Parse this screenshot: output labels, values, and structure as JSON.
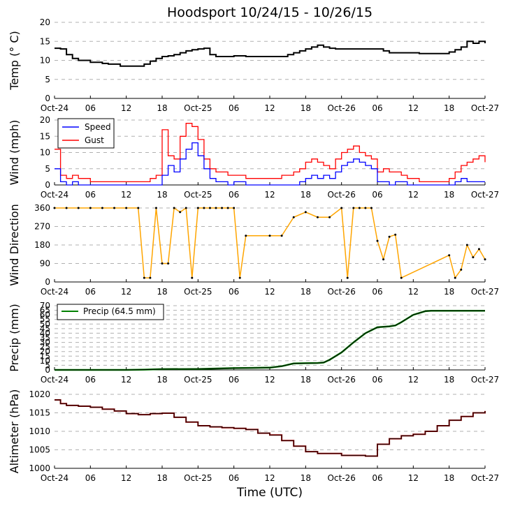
{
  "title": "Hoodsport 10/24/15 - 10/26/15",
  "xlabel": "Time (UTC)",
  "colors": {
    "temp": "#000000",
    "speed": "#0000ff",
    "gust": "#ff0000",
    "direction_line": "#ffa500",
    "direction_dot": "#000000",
    "precip_line": "#008000",
    "precip_dot": "#000000",
    "alt_line": "#8b0000",
    "alt_dot": "#000000",
    "grid": "#b0b0b0"
  },
  "x_ticks": {
    "hours": [
      0,
      6,
      12,
      18,
      24,
      30,
      36,
      42,
      48,
      54,
      60,
      66,
      72
    ],
    "labels": [
      "Oct-24",
      "06",
      "12",
      "18",
      "Oct-25",
      "06",
      "12",
      "18",
      "Oct-26",
      "06",
      "12",
      "18",
      "Oct-27"
    ]
  },
  "chart_data": [
    {
      "type": "line",
      "id": "temp",
      "ylabel": "Temp ($^\\circ$C)",
      "ylabel_display": "Temp (° C)",
      "ylim": [
        0,
        20
      ],
      "yticks": [
        0,
        5,
        10,
        15,
        20
      ],
      "x_hours": [
        0,
        1,
        2,
        3,
        4,
        5,
        6,
        7,
        8,
        9,
        10,
        11,
        12,
        13,
        14,
        15,
        16,
        17,
        18,
        19,
        20,
        21,
        22,
        23,
        24,
        25,
        26,
        27,
        28,
        29,
        30,
        31,
        32,
        33,
        34,
        35,
        36,
        37,
        38,
        39,
        40,
        41,
        42,
        43,
        44,
        45,
        46,
        47,
        48,
        49,
        50,
        51,
        52,
        53,
        54,
        55,
        56,
        57,
        58,
        59,
        60,
        61,
        62,
        63,
        64,
        65,
        66,
        67,
        68,
        69,
        70,
        71,
        72
      ],
      "series": [
        {
          "name": "Temp",
          "values": [
            13.2,
            13.0,
            11.5,
            10.5,
            10.0,
            10.0,
            9.5,
            9.5,
            9.2,
            9.0,
            9.0,
            8.5,
            8.5,
            8.5,
            8.5,
            9.0,
            9.8,
            10.5,
            11.0,
            11.2,
            11.5,
            12.0,
            12.5,
            12.8,
            13.0,
            13.2,
            11.5,
            11.0,
            11.0,
            11.0,
            11.2,
            11.2,
            11.0,
            11.0,
            11.0,
            11.0,
            11.0,
            11.0,
            11.0,
            11.5,
            12.0,
            12.5,
            13.0,
            13.5,
            14.0,
            13.5,
            13.2,
            13.0,
            13.0,
            13.0,
            13.0,
            13.0,
            13.0,
            13.0,
            13.0,
            12.5,
            12.0,
            12.0,
            12.0,
            12.0,
            12.0,
            11.8,
            11.8,
            11.8,
            11.8,
            11.8,
            12.2,
            12.8,
            13.5,
            15.0,
            14.5,
            15.0,
            14.5
          ]
        }
      ]
    },
    {
      "type": "line",
      "id": "wind",
      "ylabel": "Wind (mph)",
      "ylim": [
        0,
        20
      ],
      "yticks": [
        0,
        5,
        10,
        15,
        20
      ],
      "legend": [
        "Speed",
        "Gust"
      ],
      "x_hours": [
        0,
        1,
        2,
        3,
        4,
        5,
        6,
        7,
        8,
        9,
        10,
        11,
        12,
        13,
        14,
        15,
        16,
        17,
        18,
        19,
        20,
        21,
        22,
        23,
        24,
        25,
        26,
        27,
        28,
        29,
        30,
        31,
        32,
        33,
        34,
        35,
        36,
        37,
        38,
        39,
        40,
        41,
        42,
        43,
        44,
        45,
        46,
        47,
        48,
        49,
        50,
        51,
        52,
        53,
        54,
        55,
        56,
        57,
        58,
        59,
        60,
        61,
        62,
        63,
        64,
        65,
        66,
        67,
        68,
        69,
        70,
        71,
        72
      ],
      "series": [
        {
          "name": "Speed",
          "values": [
            5,
            1,
            0,
            1,
            0,
            0,
            0,
            0,
            0,
            0,
            0,
            0,
            0,
            0,
            0,
            0,
            0,
            0,
            3,
            6,
            4,
            8,
            11,
            13,
            9,
            5,
            2,
            1,
            1,
            0,
            1,
            1,
            0,
            0,
            0,
            0,
            0,
            0,
            0,
            0,
            0,
            1,
            2,
            3,
            2,
            3,
            2,
            4,
            6,
            7,
            8,
            7,
            6,
            5,
            1,
            1,
            0,
            1,
            1,
            0,
            0,
            0,
            0,
            0,
            0,
            0,
            0,
            1,
            2,
            1,
            1,
            1,
            1
          ]
        },
        {
          "name": "Gust",
          "values": [
            11,
            3,
            2,
            3,
            2,
            2,
            1,
            1,
            1,
            1,
            1,
            1,
            1,
            1,
            1,
            1,
            2,
            3,
            17,
            9,
            8,
            15,
            19,
            18,
            14,
            8,
            5,
            4,
            4,
            3,
            3,
            3,
            2,
            2,
            2,
            2,
            2,
            2,
            3,
            3,
            4,
            5,
            7,
            8,
            7,
            6,
            5,
            8,
            10,
            11,
            12,
            10,
            9,
            8,
            4,
            5,
            4,
            4,
            3,
            2,
            2,
            1,
            1,
            1,
            1,
            1,
            2,
            4,
            6,
            7,
            8,
            9,
            7
          ]
        }
      ]
    },
    {
      "type": "line",
      "id": "direction",
      "ylabel": "Wind Direction",
      "ylim": [
        0,
        360
      ],
      "yticks": [
        0,
        90,
        180,
        270,
        360
      ],
      "x_hours": [
        0,
        2,
        4,
        6,
        8,
        10,
        12,
        14,
        15,
        16,
        17,
        18,
        19,
        20,
        21,
        22,
        23,
        24,
        25,
        26,
        27,
        28,
        29,
        30,
        31,
        32,
        36,
        38,
        40,
        42,
        44,
        46,
        48,
        49,
        50,
        51,
        52,
        53,
        54,
        55,
        56,
        57,
        58,
        66,
        67,
        68,
        69,
        70,
        71,
        72
      ],
      "series": [
        {
          "name": "Direction",
          "values": [
            360,
            360,
            360,
            360,
            360,
            360,
            360,
            360,
            20,
            20,
            360,
            90,
            90,
            360,
            340,
            360,
            20,
            360,
            360,
            360,
            360,
            360,
            360,
            360,
            20,
            225,
            225,
            225,
            315,
            340,
            315,
            315,
            360,
            20,
            360,
            360,
            360,
            360,
            200,
            110,
            220,
            230,
            20,
            130,
            20,
            60,
            180,
            120,
            160,
            110
          ]
        }
      ]
    },
    {
      "type": "area",
      "id": "precip",
      "ylabel": "Precip (mm)",
      "ylim": [
        0,
        70
      ],
      "yticks": [
        0,
        5,
        10,
        15,
        20,
        25,
        30,
        35,
        40,
        45,
        50,
        55,
        60,
        65,
        70
      ],
      "legend": [
        "Precip (64.5 mm)"
      ],
      "x_hours": [
        0,
        6,
        12,
        15,
        18,
        24,
        30,
        33,
        36,
        38,
        40,
        42,
        44,
        45,
        46,
        48,
        50,
        52,
        54,
        56,
        57,
        58,
        60,
        62,
        63,
        66,
        72
      ],
      "series": [
        {
          "name": "Precip (64.5 mm)",
          "values": [
            0,
            0,
            0,
            0.3,
            0.8,
            1.0,
            2.0,
            2.2,
            2.5,
            4.0,
            7.0,
            7.3,
            7.5,
            8.0,
            11.0,
            19.0,
            30.0,
            40.0,
            46.5,
            47.5,
            48.5,
            52.0,
            60.0,
            64.0,
            64.5,
            64.5,
            64.5
          ]
        }
      ]
    },
    {
      "type": "line",
      "id": "altimeter",
      "ylabel": "Altimeter (hPa)",
      "ylim": [
        1000,
        1020
      ],
      "yticks": [
        1000,
        1005,
        1010,
        1015,
        1020
      ],
      "x_hours": [
        0,
        1,
        2,
        4,
        6,
        8,
        10,
        12,
        14,
        16,
        18,
        20,
        22,
        24,
        26,
        28,
        30,
        32,
        34,
        36,
        38,
        40,
        42,
        44,
        46,
        48,
        50,
        52,
        54,
        56,
        58,
        60,
        62,
        64,
        66,
        68,
        70,
        72
      ],
      "series": [
        {
          "name": "Altimeter",
          "values": [
            1018.5,
            1017.5,
            1017.0,
            1016.8,
            1016.5,
            1016.0,
            1015.5,
            1014.8,
            1014.5,
            1014.8,
            1014.9,
            1013.8,
            1012.5,
            1011.5,
            1011.2,
            1011.0,
            1010.8,
            1010.5,
            1009.5,
            1009.0,
            1007.5,
            1006.0,
            1004.5,
            1004.0,
            1004.0,
            1003.5,
            1003.5,
            1003.3,
            1006.5,
            1008.0,
            1008.8,
            1009.2,
            1010.0,
            1011.5,
            1013.0,
            1014.0,
            1015.0,
            1015.5
          ]
        }
      ]
    }
  ]
}
